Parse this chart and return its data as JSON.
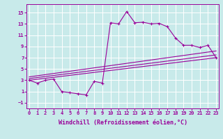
{
  "bg_color": "#c8eaea",
  "line_color": "#990099",
  "grid_color": "#ffffff",
  "xlabel": "Windchill (Refroidissement éolien,°C)",
  "xlabel_fontsize": 6.0,
  "xticks": [
    0,
    1,
    2,
    3,
    4,
    5,
    6,
    7,
    8,
    9,
    10,
    11,
    12,
    13,
    14,
    15,
    16,
    17,
    18,
    19,
    20,
    21,
    22,
    23
  ],
  "yticks": [
    -1,
    1,
    3,
    5,
    7,
    9,
    11,
    13,
    15
  ],
  "xlim": [
    -0.3,
    23.3
  ],
  "ylim": [
    -2.0,
    16.5
  ],
  "main_x": [
    0,
    1,
    2,
    3,
    4,
    5,
    6,
    7,
    8,
    9,
    10,
    11,
    12,
    13,
    14,
    15,
    16,
    17,
    18,
    19,
    20,
    21,
    22,
    23
  ],
  "main_y": [
    3.0,
    2.5,
    3.0,
    3.2,
    1.0,
    0.8,
    0.6,
    0.4,
    2.8,
    2.5,
    13.2,
    13.0,
    15.2,
    13.2,
    13.3,
    13.0,
    13.1,
    12.5,
    10.5,
    9.2,
    9.2,
    8.8,
    9.2,
    7.0
  ],
  "line1_x": [
    0,
    23
  ],
  "line1_y": [
    3.0,
    7.0
  ],
  "line2_x": [
    0,
    23
  ],
  "line2_y": [
    3.3,
    7.5
  ],
  "line3_x": [
    0,
    23
  ],
  "line3_y": [
    3.6,
    8.2
  ]
}
